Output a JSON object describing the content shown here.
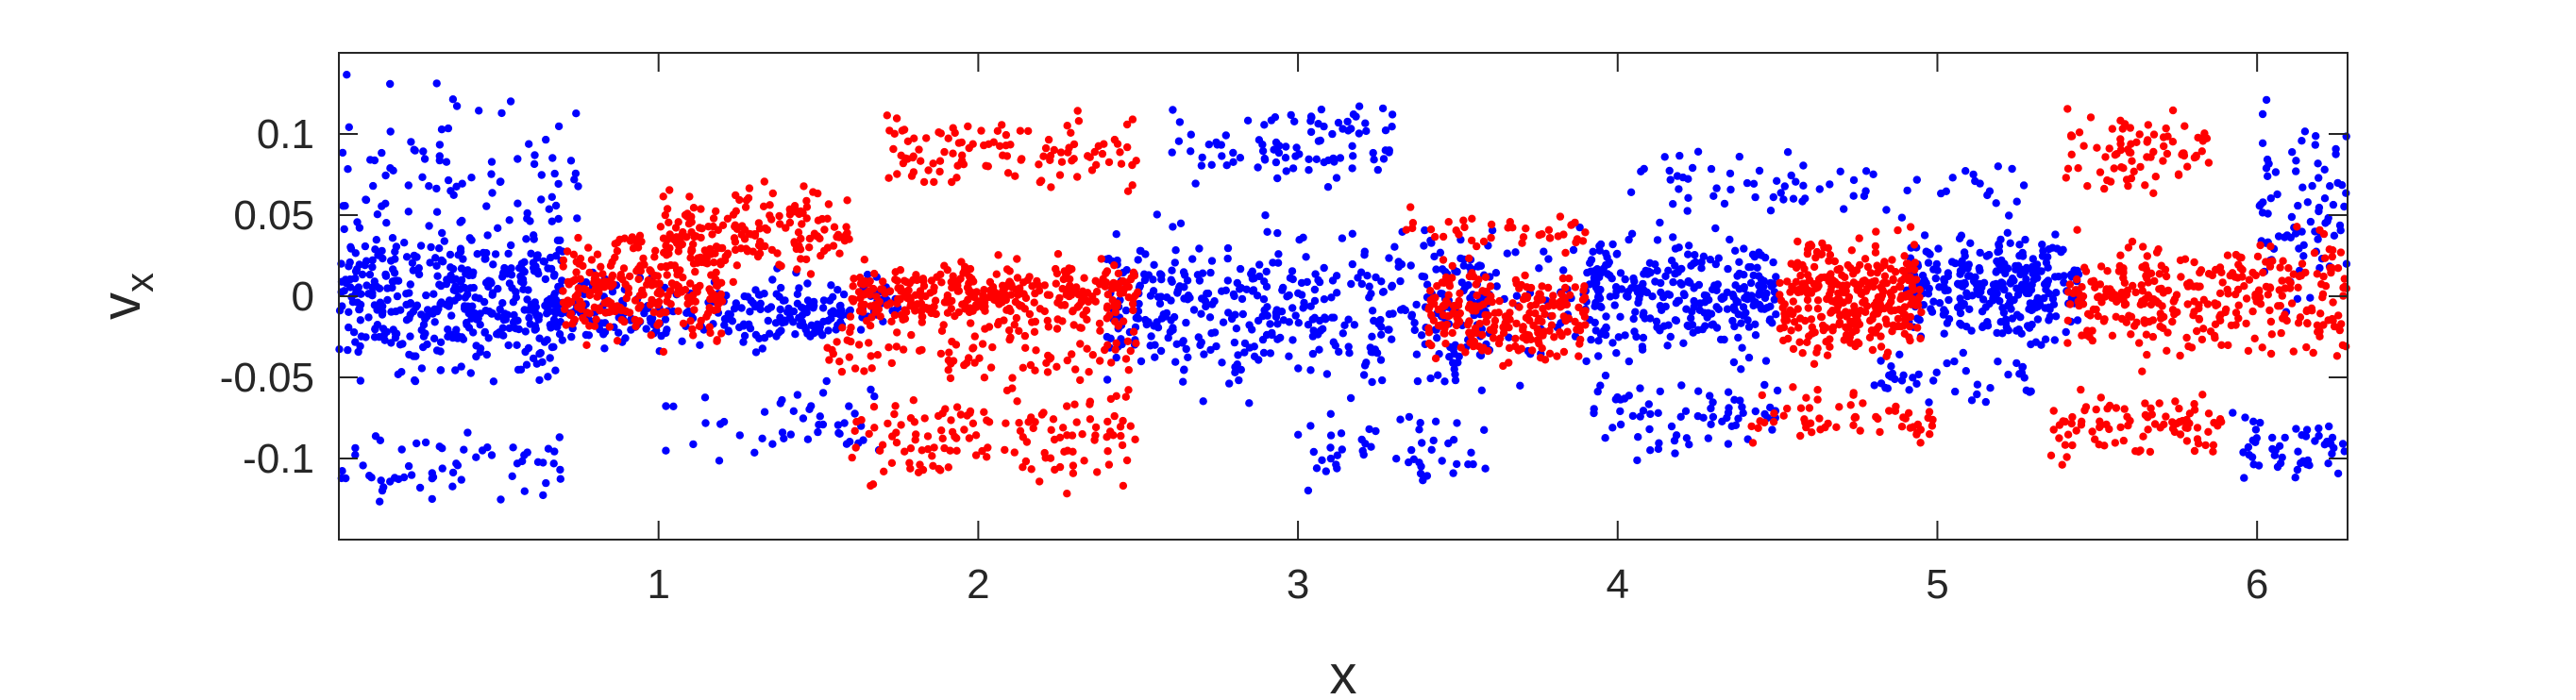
{
  "chart_data": {
    "type": "scatter",
    "xlabel": "x",
    "ylabel": "v",
    "ylabel_subscript": "x",
    "xlim": [
      0,
      6.283
    ],
    "ylim": [
      -0.15,
      0.15
    ],
    "xticks": [
      1,
      2,
      3,
      4,
      5,
      6
    ],
    "xtick_labels": [
      "1",
      "2",
      "3",
      "4",
      "5",
      "6"
    ],
    "yticks": [
      0.1,
      0.05,
      0,
      -0.05,
      -0.1
    ],
    "ytick_labels": [
      "0.1",
      "0.05",
      "0",
      "-0.05",
      "-0.1"
    ],
    "grid": false,
    "legend": false,
    "series": [
      {
        "color": "#0000ff",
        "clusters": [
          {
            "x": [
              0.0,
              0.7
            ],
            "y": [
              -0.07,
              0.07
            ],
            "n": 420
          },
          {
            "x": [
              0.0,
              0.75
            ],
            "y": [
              0.02,
              0.15
            ],
            "n": 70
          },
          {
            "x": [
              0.0,
              0.7
            ],
            "y": [
              -0.14,
              -0.07
            ],
            "n": 60
          },
          {
            "x": [
              0.6,
              1.6
            ],
            "y": [
              -0.04,
              0.02
            ],
            "n": 200
          },
          {
            "x": [
              1.0,
              1.7
            ],
            "y": [
              -0.11,
              -0.04
            ],
            "n": 45
          },
          {
            "x": [
              1.3,
              1.75
            ],
            "y": [
              -0.03,
              0.02
            ],
            "n": 70
          },
          {
            "x": [
              2.4,
              3.6
            ],
            "y": [
              -0.08,
              0.06
            ],
            "n": 420
          },
          {
            "x": [
              2.6,
              3.3
            ],
            "y": [
              0.06,
              0.13
            ],
            "n": 90
          },
          {
            "x": [
              3.0,
              3.6
            ],
            "y": [
              -0.13,
              -0.06
            ],
            "n": 50
          },
          {
            "x": [
              3.4,
              3.95
            ],
            "y": [
              -0.07,
              0.07
            ],
            "n": 70
          },
          {
            "x": [
              3.9,
              4.5
            ],
            "y": [
              -0.05,
              0.05
            ],
            "n": 280
          },
          {
            "x": [
              3.9,
              4.5
            ],
            "y": [
              -0.11,
              -0.04
            ],
            "n": 70
          },
          {
            "x": [
              4.0,
              4.6
            ],
            "y": [
              0.04,
              0.1
            ],
            "n": 40
          },
          {
            "x": [
              4.9,
              5.45
            ],
            "y": [
              -0.04,
              0.05
            ],
            "n": 300
          },
          {
            "x": [
              4.8,
              5.3
            ],
            "y": [
              -0.07,
              -0.03
            ],
            "n": 40
          },
          {
            "x": [
              4.5,
              5.3
            ],
            "y": [
              0.04,
              0.09
            ],
            "n": 30
          },
          {
            "x": [
              5.9,
              6.28
            ],
            "y": [
              -0.13,
              -0.06
            ],
            "n": 50
          },
          {
            "x": [
              6.0,
              6.28
            ],
            "y": [
              -0.03,
              0.13
            ],
            "n": 80
          }
        ]
      },
      {
        "color": "#ff0000",
        "clusters": [
          {
            "x": [
              0.7,
              1.2
            ],
            "y": [
              -0.04,
              0.05
            ],
            "n": 260
          },
          {
            "x": [
              1.0,
              1.6
            ],
            "y": [
              0.0,
              0.08
            ],
            "n": 170
          },
          {
            "x": [
              1.6,
              2.5
            ],
            "y": [
              -0.03,
              0.03
            ],
            "n": 350
          },
          {
            "x": [
              1.7,
              2.5
            ],
            "y": [
              0.06,
              0.12
            ],
            "n": 110
          },
          {
            "x": [
              1.6,
              2.5
            ],
            "y": [
              -0.13,
              -0.04
            ],
            "n": 140
          },
          {
            "x": [
              1.5,
              2.5
            ],
            "y": [
              -0.06,
              -0.01
            ],
            "n": 90
          },
          {
            "x": [
              3.4,
              3.9
            ],
            "y": [
              -0.05,
              0.03
            ],
            "n": 230
          },
          {
            "x": [
              3.3,
              3.9
            ],
            "y": [
              0.02,
              0.06
            ],
            "n": 40
          },
          {
            "x": [
              4.5,
              4.95
            ],
            "y": [
              -0.05,
              0.05
            ],
            "n": 320
          },
          {
            "x": [
              4.4,
              5.0
            ],
            "y": [
              -0.1,
              -0.05
            ],
            "n": 60
          },
          {
            "x": [
              5.4,
              6.28
            ],
            "y": [
              -0.05,
              0.05
            ],
            "n": 320
          },
          {
            "x": [
              5.35,
              5.9
            ],
            "y": [
              -0.11,
              -0.05
            ],
            "n": 90
          },
          {
            "x": [
              5.4,
              5.85
            ],
            "y": [
              0.05,
              0.13
            ],
            "n": 80
          }
        ]
      }
    ]
  }
}
